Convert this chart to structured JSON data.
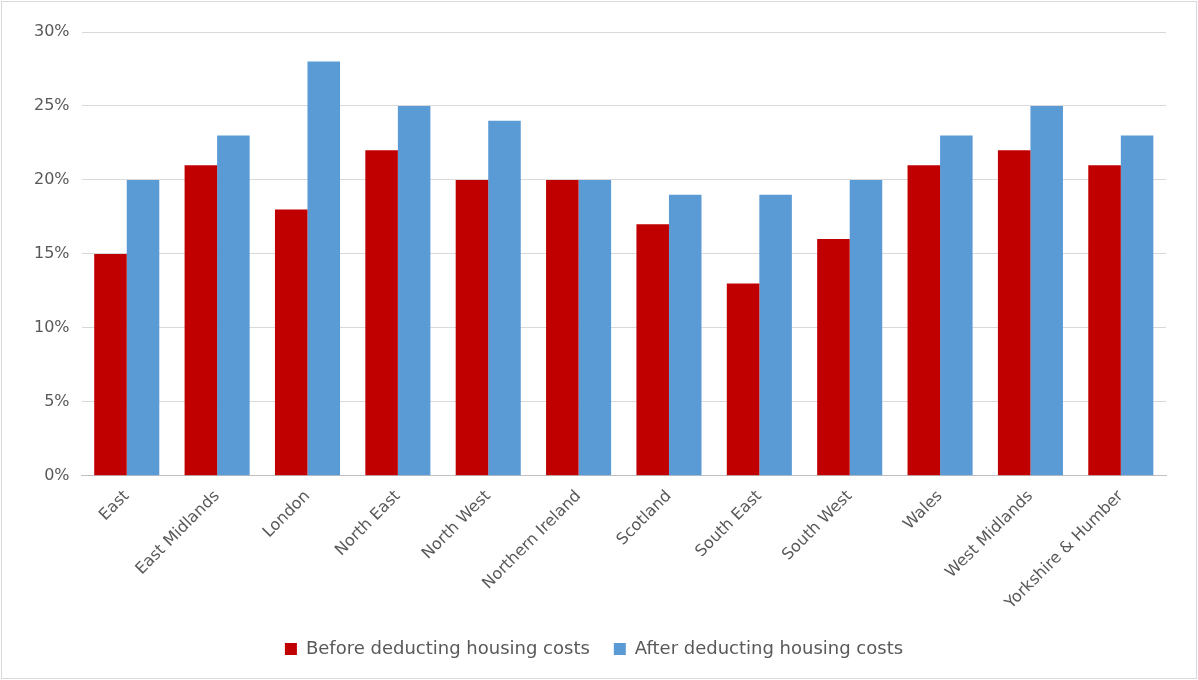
{
  "chart_data": {
    "type": "bar",
    "categories": [
      "East",
      "East Midlands",
      "London",
      "North East",
      "North West",
      "Northern Ireland",
      "Scotland",
      "South East",
      "South West",
      "Wales",
      "West Midlands",
      "Yorkshire & Humber"
    ],
    "series": [
      {
        "name": "Before deducting housing costs",
        "color": "#c00000",
        "values": [
          15,
          21,
          18,
          22,
          20,
          20,
          17,
          13,
          16,
          21,
          22,
          21
        ]
      },
      {
        "name": "After deducting housing costs",
        "color": "#5b9bd5",
        "values": [
          20,
          23,
          28,
          25,
          24,
          20,
          19,
          19,
          20,
          23,
          25,
          23
        ]
      }
    ],
    "ylim": [
      0,
      30
    ],
    "yticks": [
      {
        "value": 0,
        "label": "0%"
      },
      {
        "value": 5,
        "label": "5%"
      },
      {
        "value": 10,
        "label": "10%"
      },
      {
        "value": 15,
        "label": "15%"
      },
      {
        "value": 20,
        "label": "20%"
      },
      {
        "value": 25,
        "label": "25%"
      },
      {
        "value": 30,
        "label": "30%"
      }
    ],
    "grid": "y",
    "legend": "bottom"
  }
}
